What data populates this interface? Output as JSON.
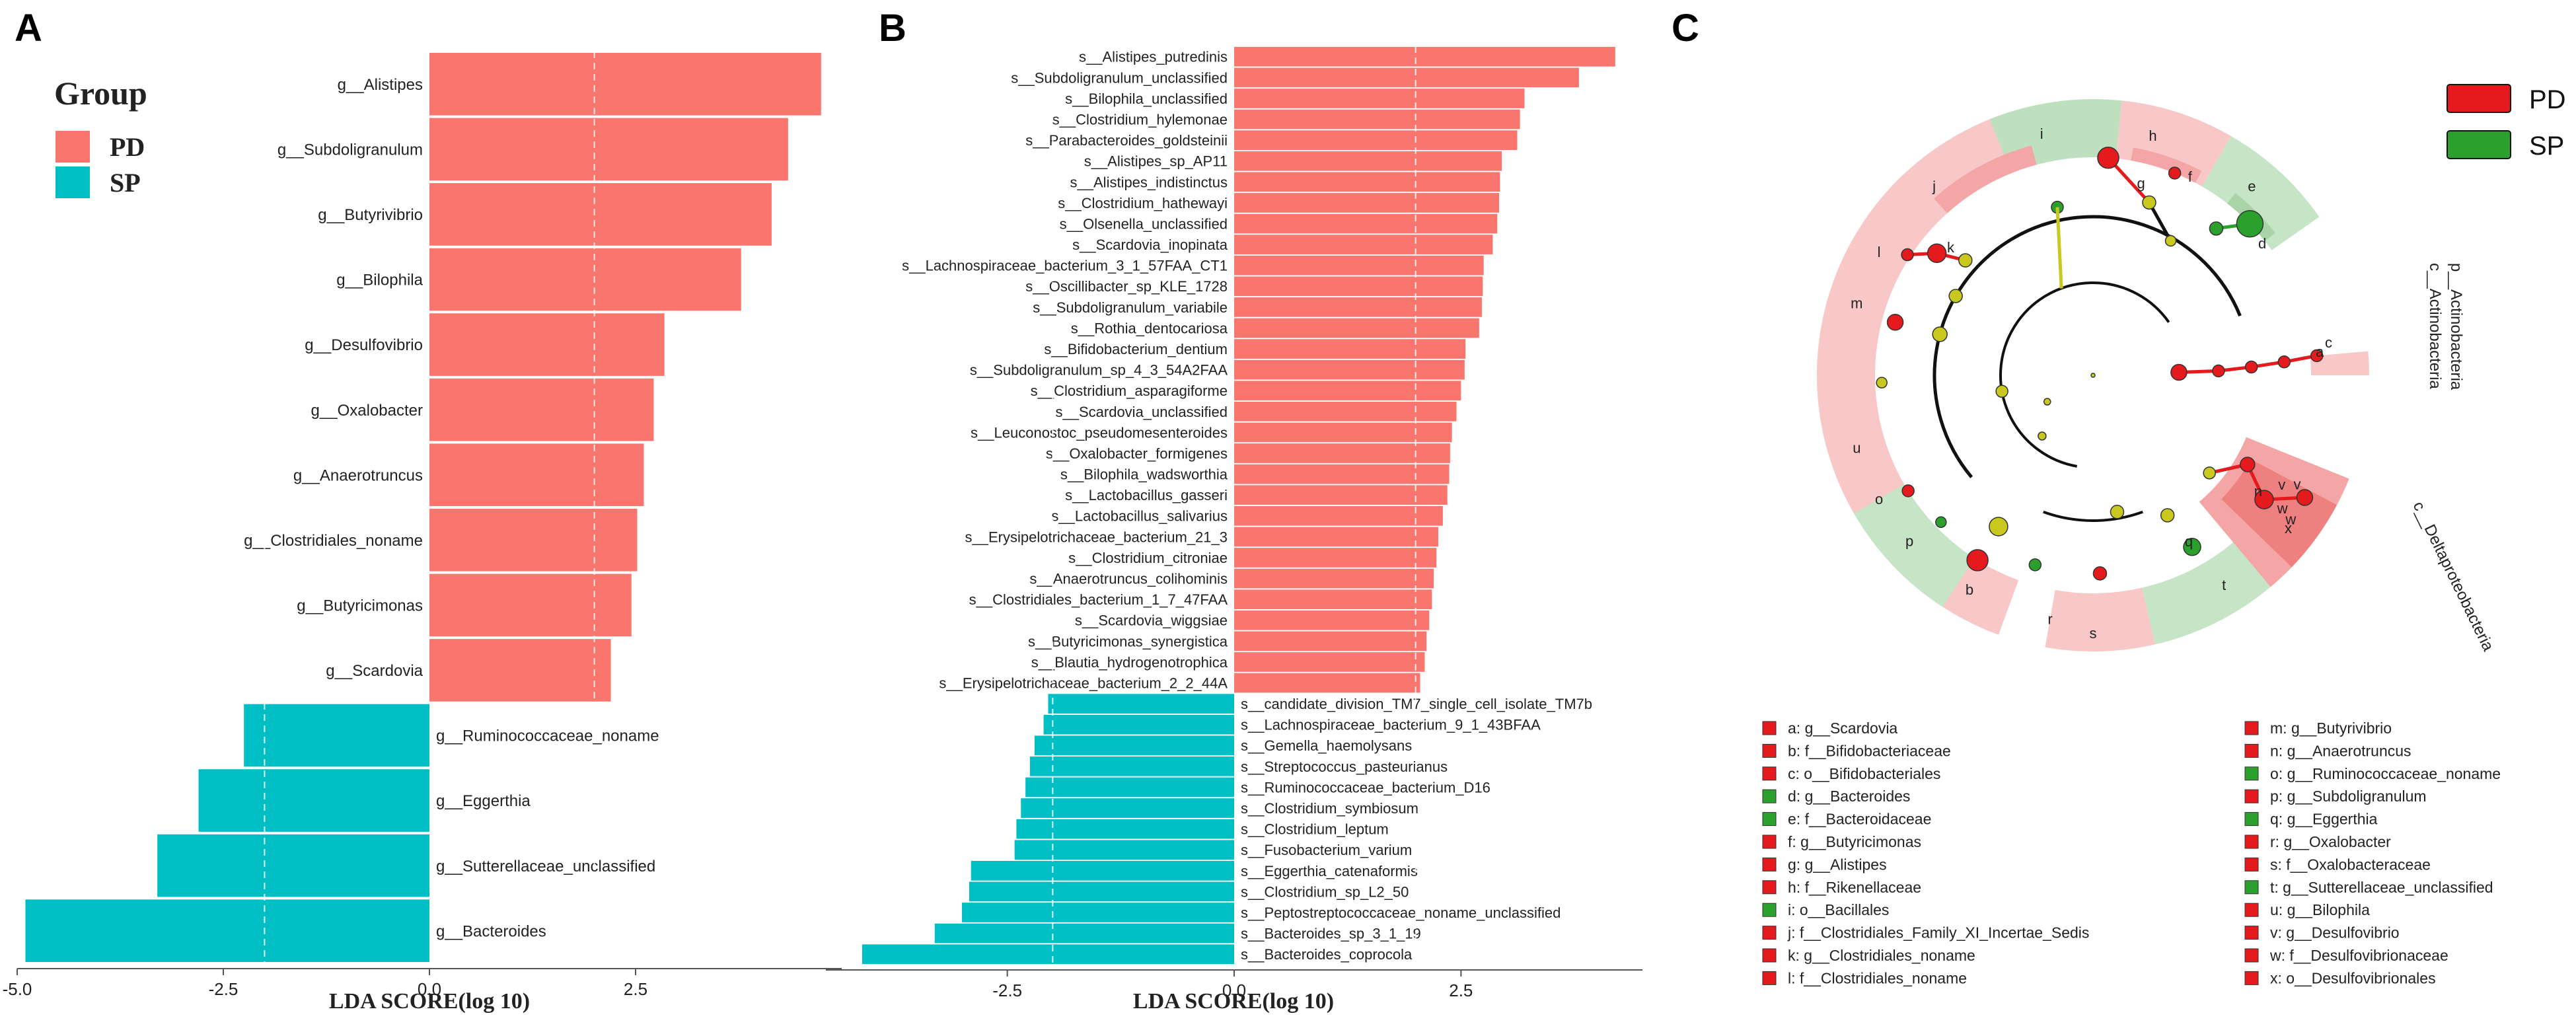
{
  "panel_letters": [
    "A",
    "B",
    "C"
  ],
  "colors": {
    "pd": "#F8766D",
    "sp": "#00BFC4",
    "pd_clado": "#E41A1C",
    "sp_clado": "#2CA02C",
    "node_neutral": "#C8C81E"
  },
  "chart_data": [
    {
      "type": "bar",
      "orientation": "horizontal",
      "panel": "A",
      "xlabel": "LDA SCORE(log 10)",
      "xlim": [
        -5.0,
        5.0
      ],
      "xticks": [
        "-5.0",
        "-2.5",
        "0.0",
        "2.5"
      ],
      "xtick_values": [
        -5.0,
        -2.5,
        0.0,
        2.5
      ],
      "dashed_lines": [
        -2.0,
        2.0
      ],
      "legend": {
        "title": "Group",
        "entries": [
          {
            "label": "PD",
            "color": "#F8766D"
          },
          {
            "label": "SP",
            "color": "#00BFC4"
          }
        ]
      },
      "bars": [
        {
          "label": "g__Alistipes",
          "value": 4.75,
          "group": "PD"
        },
        {
          "label": "g__Subdoligranulum",
          "value": 4.35,
          "group": "PD"
        },
        {
          "label": "g__Butyrivibrio",
          "value": 4.15,
          "group": "PD"
        },
        {
          "label": "g__Bilophila",
          "value": 3.78,
          "group": "PD"
        },
        {
          "label": "g__Desulfovibrio",
          "value": 2.85,
          "group": "PD"
        },
        {
          "label": "g__Oxalobacter",
          "value": 2.72,
          "group": "PD"
        },
        {
          "label": "g__Anaerotruncus",
          "value": 2.6,
          "group": "PD"
        },
        {
          "label": "g__Clostridiales_noname",
          "value": 2.52,
          "group": "PD"
        },
        {
          "label": "g__Butyricimonas",
          "value": 2.45,
          "group": "PD"
        },
        {
          "label": "g__Scardovia",
          "value": 2.2,
          "group": "PD"
        },
        {
          "label": "g__Ruminococcaceae_noname",
          "value": -2.25,
          "group": "SP"
        },
        {
          "label": "g__Eggerthia",
          "value": -2.8,
          "group": "SP"
        },
        {
          "label": "g__Sutterellaceae_unclassified",
          "value": -3.3,
          "group": "SP"
        },
        {
          "label": "g__Bacteroides",
          "value": -4.9,
          "group": "SP"
        }
      ]
    },
    {
      "type": "bar",
      "orientation": "horizontal",
      "panel": "B",
      "xlabel": "LDA SCORE(log 10)",
      "xlim": [
        -4.5,
        4.5
      ],
      "xticks": [
        "-2.5",
        "0.0",
        "2.5"
      ],
      "xtick_values": [
        -2.5,
        0.0,
        2.5
      ],
      "dashed_lines": [
        -2.0,
        2.0
      ],
      "bars": [
        {
          "label": "s__Alistipes_putredinis",
          "value": 4.2,
          "group": "PD"
        },
        {
          "label": "s__Subdoligranulum_unclassified",
          "value": 3.8,
          "group": "PD"
        },
        {
          "label": "s__Bilophila_unclassified",
          "value": 3.2,
          "group": "PD"
        },
        {
          "label": "s__Clostridium_hylemonae",
          "value": 3.15,
          "group": "PD"
        },
        {
          "label": "s__Parabacteroides_goldsteinii",
          "value": 3.12,
          "group": "PD"
        },
        {
          "label": "s__Alistipes_sp_AP11",
          "value": 2.95,
          "group": "PD"
        },
        {
          "label": "s__Alistipes_indistinctus",
          "value": 2.93,
          "group": "PD"
        },
        {
          "label": "s__Clostridium_hathewayi",
          "value": 2.92,
          "group": "PD"
        },
        {
          "label": "s__Olsenella_unclassified",
          "value": 2.9,
          "group": "PD"
        },
        {
          "label": "s__Scardovia_inopinata",
          "value": 2.85,
          "group": "PD"
        },
        {
          "label": "s__Lachnospiraceae_bacterium_3_1_57FAA_CT1",
          "value": 2.75,
          "group": "PD"
        },
        {
          "label": "s__Oscillibacter_sp_KLE_1728",
          "value": 2.74,
          "group": "PD"
        },
        {
          "label": "s__Subdoligranulum_variabile",
          "value": 2.73,
          "group": "PD"
        },
        {
          "label": "s__Rothia_dentocariosa",
          "value": 2.7,
          "group": "PD"
        },
        {
          "label": "s__Bifidobacterium_dentium",
          "value": 2.55,
          "group": "PD"
        },
        {
          "label": "s__Subdoligranulum_sp_4_3_54A2FAA",
          "value": 2.54,
          "group": "PD"
        },
        {
          "label": "s__Clostridium_asparagiforme",
          "value": 2.5,
          "group": "PD"
        },
        {
          "label": "s__Scardovia_unclassified",
          "value": 2.45,
          "group": "PD"
        },
        {
          "label": "s__Leuconostoc_pseudomesenteroides",
          "value": 2.4,
          "group": "PD"
        },
        {
          "label": "s__Oxalobacter_formigenes",
          "value": 2.38,
          "group": "PD"
        },
        {
          "label": "s__Bilophila_wadsworthia",
          "value": 2.37,
          "group": "PD"
        },
        {
          "label": "s__Lactobacillus_gasseri",
          "value": 2.35,
          "group": "PD"
        },
        {
          "label": "s__Lactobacillus_salivarius",
          "value": 2.3,
          "group": "PD"
        },
        {
          "label": "s__Erysipelotrichaceae_bacterium_21_3",
          "value": 2.25,
          "group": "PD"
        },
        {
          "label": "s__Clostridium_citroniae",
          "value": 2.23,
          "group": "PD"
        },
        {
          "label": "s__Anaerotruncus_colihominis",
          "value": 2.2,
          "group": "PD"
        },
        {
          "label": "s__Clostridiales_bacterium_1_7_47FAA",
          "value": 2.18,
          "group": "PD"
        },
        {
          "label": "s__Scardovia_wiggsiae",
          "value": 2.15,
          "group": "PD"
        },
        {
          "label": "s__Butyricimonas_synergistica",
          "value": 2.12,
          "group": "PD"
        },
        {
          "label": "s__Blautia_hydrogenotrophica",
          "value": 2.1,
          "group": "PD"
        },
        {
          "label": "s__Erysipelotrichaceae_bacterium_2_2_44A",
          "value": 2.05,
          "group": "PD"
        },
        {
          "label": "s__candidate_division_TM7_single_cell_isolate_TM7b",
          "value": -2.05,
          "group": "SP"
        },
        {
          "label": "s__Lachnospiraceae_bacterium_9_1_43BFAA",
          "value": -2.1,
          "group": "SP"
        },
        {
          "label": "s__Gemella_haemolysans",
          "value": -2.2,
          "group": "SP"
        },
        {
          "label": "s__Streptococcus_pasteurianus",
          "value": -2.25,
          "group": "SP"
        },
        {
          "label": "s__Ruminococcaceae_bacterium_D16",
          "value": -2.3,
          "group": "SP"
        },
        {
          "label": "s__Clostridium_symbiosum",
          "value": -2.35,
          "group": "SP"
        },
        {
          "label": "s__Clostridium_leptum",
          "value": -2.4,
          "group": "SP"
        },
        {
          "label": "s__Fusobacterium_varium",
          "value": -2.42,
          "group": "SP"
        },
        {
          "label": "s__Eggerthia_catenaformis",
          "value": -2.9,
          "group": "SP"
        },
        {
          "label": "s__Clostridium_sp_L2_50",
          "value": -2.92,
          "group": "SP"
        },
        {
          "label": "s__Peptostreptococcaceae_noname_unclassified",
          "value": -3.0,
          "group": "SP"
        },
        {
          "label": "s__Bacteroides_sp_3_1_19",
          "value": -3.3,
          "group": "SP"
        },
        {
          "label": "s__Bacteroides_coprocola",
          "value": -4.1,
          "group": "SP"
        }
      ]
    },
    {
      "type": "cladogram",
      "panel": "C",
      "legend": [
        {
          "label": "PD",
          "color": "#E41A1C"
        },
        {
          "label": "SP",
          "color": "#2CA02C"
        }
      ],
      "clade_labels": {
        "phylum": "p__Actinobacteria",
        "class": "c__Actinobacteria",
        "delta": "c__Deltaproteobacteria"
      },
      "sector_letters": [
        "h",
        "i",
        "j",
        "l",
        "m",
        "u",
        "o",
        "p",
        "b",
        "r",
        "s",
        "t",
        "e",
        "v",
        "w",
        "x",
        "a",
        "c"
      ],
      "node_letters": [
        "g",
        "f",
        "d",
        "k",
        "n",
        "q",
        "v",
        "w"
      ],
      "key_left": [
        {
          "code": "a",
          "text": "a: g__Scardovia",
          "group": "PD"
        },
        {
          "code": "b",
          "text": "b: f__Bifidobacteriaceae",
          "group": "PD"
        },
        {
          "code": "c",
          "text": "c: o__Bifidobacteriales",
          "group": "PD"
        },
        {
          "code": "d",
          "text": "d: g__Bacteroides",
          "group": "SP"
        },
        {
          "code": "e",
          "text": "e: f__Bacteroidaceae",
          "group": "SP"
        },
        {
          "code": "f",
          "text": "f: g__Butyricimonas",
          "group": "PD"
        },
        {
          "code": "g",
          "text": "g: g__Alistipes",
          "group": "PD"
        },
        {
          "code": "h",
          "text": "h: f__Rikenellaceae",
          "group": "PD"
        },
        {
          "code": "i",
          "text": "i: o__Bacillales",
          "group": "SP"
        },
        {
          "code": "j",
          "text": "j: f__Clostridiales_Family_XI_Incertae_Sedis",
          "group": "PD"
        },
        {
          "code": "k",
          "text": "k: g__Clostridiales_noname",
          "group": "PD"
        },
        {
          "code": "l",
          "text": "l: f__Clostridiales_noname",
          "group": "PD"
        }
      ],
      "key_right": [
        {
          "code": "m",
          "text": "m: g__Butyrivibrio",
          "group": "PD"
        },
        {
          "code": "n",
          "text": "n: g__Anaerotruncus",
          "group": "PD"
        },
        {
          "code": "o",
          "text": "o: g__Ruminococcaceae_noname",
          "group": "SP"
        },
        {
          "code": "p",
          "text": "p: g__Subdoligranulum",
          "group": "PD"
        },
        {
          "code": "q",
          "text": "q: g__Eggerthia",
          "group": "SP"
        },
        {
          "code": "r",
          "text": "r: g__Oxalobacter",
          "group": "PD"
        },
        {
          "code": "s",
          "text": "s: f__Oxalobacteraceae",
          "group": "PD"
        },
        {
          "code": "t",
          "text": "t: g__Sutterellaceae_unclassified",
          "group": "SP"
        },
        {
          "code": "u",
          "text": "u: g__Bilophila",
          "group": "PD"
        },
        {
          "code": "v",
          "text": "v: g__Desulfovibrio",
          "group": "PD"
        },
        {
          "code": "w",
          "text": "w: f__Desulfovibrionaceae",
          "group": "PD"
        },
        {
          "code": "x",
          "text": "x: o__Desulfovibrionales",
          "group": "PD"
        }
      ]
    }
  ]
}
